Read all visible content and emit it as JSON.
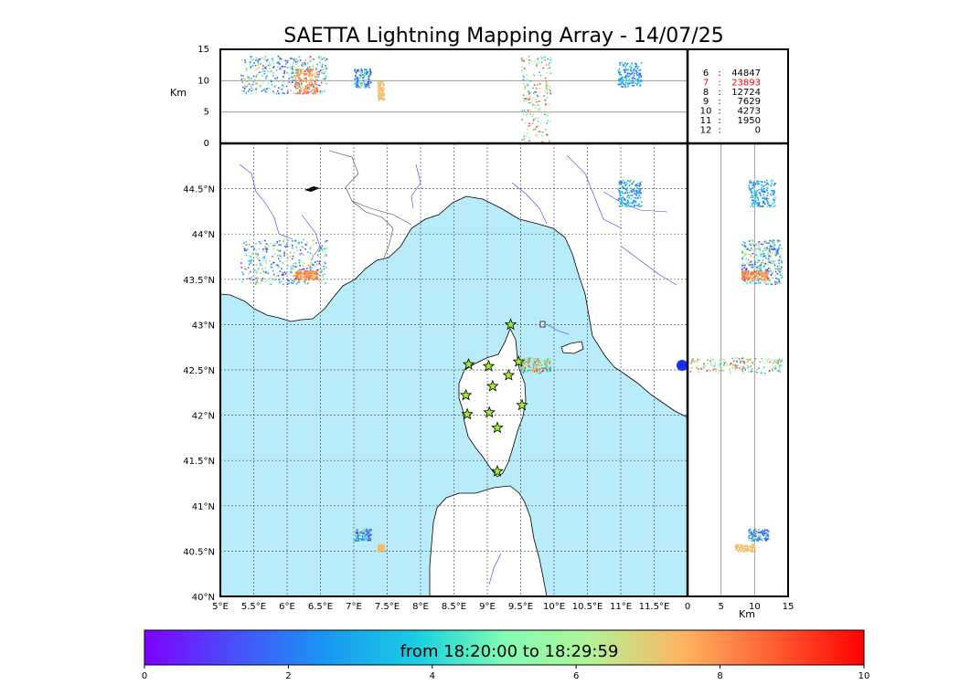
{
  "chart_data": {
    "type": "scatter",
    "title": "SAETTA Lightning Mapping Array - 14/07/25",
    "map": {
      "x_ticks": [
        "5°E",
        "5.5°E",
        "6°E",
        "6.5°E",
        "7°E",
        "7.5°E",
        "8°E",
        "8.5°E",
        "9°E",
        "9.5°E",
        "10°E",
        "10.5°E",
        "11°E",
        "11.5°E"
      ],
      "y_ticks": [
        "40°N",
        "40.5°N",
        "41°N",
        "41.5°N",
        "42°N",
        "42.5°N",
        "43°N",
        "43.5°N",
        "44°N",
        "44.5°N"
      ],
      "xlim": [
        5,
        12
      ],
      "ylim": [
        40,
        45
      ],
      "grid": true,
      "sea_color": "#b8ecfa",
      "land_color": "#ffffff",
      "stations": [
        {
          "lon": 9.35,
          "lat": 43.0
        },
        {
          "lon": 8.72,
          "lat": 42.56
        },
        {
          "lon": 9.02,
          "lat": 42.54
        },
        {
          "lon": 9.47,
          "lat": 42.59
        },
        {
          "lon": 9.32,
          "lat": 42.44
        },
        {
          "lon": 9.08,
          "lat": 42.32
        },
        {
          "lon": 8.68,
          "lat": 42.22
        },
        {
          "lon": 9.52,
          "lat": 42.11
        },
        {
          "lon": 8.7,
          "lat": 42.01
        },
        {
          "lon": 9.03,
          "lat": 42.03
        },
        {
          "lon": 9.15,
          "lat": 41.86
        },
        {
          "lon": 9.15,
          "lat": 41.38
        }
      ],
      "clusters": [
        {
          "lon": [
            5.3,
            6.6
          ],
          "lat": [
            43.45,
            43.95
          ],
          "alt": [
            8,
            14
          ],
          "time": [
            0.5,
            8
          ]
        },
        {
          "lon": [
            6.1,
            6.45
          ],
          "lat": [
            43.5,
            43.6
          ],
          "alt": [
            8,
            12
          ],
          "time": [
            7,
            9
          ]
        },
        {
          "lon": [
            9.5,
            9.95
          ],
          "lat": [
            42.47,
            42.64
          ],
          "alt": [
            0,
            14
          ],
          "time": [
            3,
            9.5
          ]
        },
        {
          "lon": [
            10.95,
            11.3
          ],
          "lat": [
            44.3,
            44.6
          ],
          "alt": [
            9,
            13
          ],
          "time": [
            1,
            4.5
          ]
        },
        {
          "lon": [
            7.0,
            7.25
          ],
          "lat": [
            40.62,
            40.75
          ],
          "alt": [
            9,
            12
          ],
          "time": [
            0.2,
            7
          ]
        },
        {
          "lon": [
            7.35,
            7.45
          ],
          "lat": [
            40.5,
            40.58
          ],
          "alt": [
            7,
            10
          ],
          "time": [
            7,
            7.5
          ]
        }
      ]
    },
    "altitude_panel": {
      "ylabel": "Km",
      "y_ticks": [
        "0",
        "5",
        "10",
        "15"
      ],
      "ylim": [
        0,
        15
      ],
      "grid_lines": [
        5,
        10
      ]
    },
    "side_panel": {
      "xlabel": "Km",
      "x_ticks": [
        "0",
        "5",
        "10",
        "15"
      ],
      "xlim": [
        0,
        15
      ],
      "grid_lines": [
        5,
        10
      ]
    },
    "histogram": [
      {
        "altitude": "6",
        "count": "44847",
        "color": "#000000"
      },
      {
        "altitude": "7",
        "count": "23893",
        "color": "#ff0000"
      },
      {
        "altitude": "8",
        "count": "12724",
        "color": "#000000"
      },
      {
        "altitude": "9",
        "count": "7629",
        "color": "#000000"
      },
      {
        "altitude": "10",
        "count": "4273",
        "color": "#000000"
      },
      {
        "altitude": "11",
        "count": "1950",
        "color": "#000000"
      },
      {
        "altitude": "12",
        "count": "0",
        "color": "#000000"
      }
    ],
    "colorbar": {
      "label": "from 18:20:00 to 18:29:59",
      "ticks": [
        "0",
        "2",
        "4",
        "6",
        "8",
        "10"
      ],
      "range": [
        0,
        10
      ],
      "colormap": "rainbow"
    }
  }
}
